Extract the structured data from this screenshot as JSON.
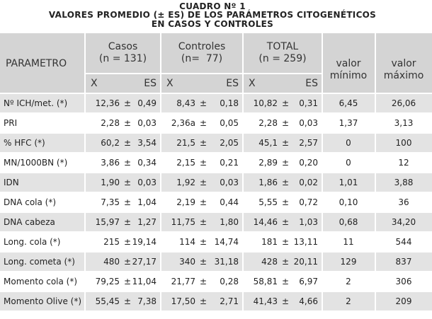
{
  "header": {
    "label": "CUADRO Nº 1",
    "title": "VALORES PROMEDIO (± ES) DE LOS PARÁMETROS CITOGENÉTICOS",
    "subtitle": "EN CASOS Y CONTROLES"
  },
  "table": {
    "columns": {
      "parameter": "PARAMETRO",
      "groups": [
        {
          "name": "Casos",
          "n": "(n = 131)"
        },
        {
          "name": "Controles",
          "n": "(n=  77)"
        },
        {
          "name": "TOTAL",
          "n": "(n = 259)"
        }
      ],
      "x": "X",
      "es": "ES",
      "pm": "±",
      "min": "valor mínimo",
      "max": "valor máximo"
    },
    "rows": [
      [
        "Nº ICH/met. (*)",
        "12,36",
        "0,49",
        "8,43",
        "0,18",
        "10,82",
        "0,31",
        "6,45",
        "26,06"
      ],
      [
        "PRI",
        "2,28",
        "0,03",
        "2,36a",
        "0,05",
        "2,28",
        "0,03",
        "1,37",
        "3,13"
      ],
      [
        "% HFC (*)",
        "60,2",
        "3,54",
        "21,5",
        "2,05",
        "45,1",
        "2,57",
        "0",
        "100"
      ],
      [
        "MN/1000BN (*)",
        "3,86",
        "0,34",
        "2,15",
        "0,21",
        "2,89",
        "0,20",
        "0",
        "12"
      ],
      [
        "IDN",
        "1,90",
        "0,03",
        "1,92",
        "0,03",
        "1,86",
        "0,02",
        "1,01",
        "3,88"
      ],
      [
        "DNA cola (*)",
        "7,35",
        "1,04",
        "2,19",
        "0,44",
        "5,55",
        "0,72",
        "0,10",
        "36"
      ],
      [
        "DNA cabeza",
        "15,97",
        "1,27",
        "11,75",
        "1,80",
        "14,46",
        "1,03",
        "0,68",
        "34,20"
      ],
      [
        "Long. cola (*)",
        "215",
        "19,14",
        "114",
        "14,74",
        "181",
        "13,11",
        "11",
        "544"
      ],
      [
        "Long. cometa (*)",
        "480",
        "27,17",
        "340",
        "31,18",
        "428",
        "20,11",
        "129",
        "837"
      ],
      [
        "Momento cola (*)",
        "79,25",
        "11,04",
        "21,77",
        "0,28",
        "58,81",
        "6,97",
        "2",
        "306"
      ],
      [
        "Momento Olive (*)",
        "55,45",
        "7,38",
        "17,50",
        "2,71",
        "41,43",
        "4,66",
        "2",
        "209"
      ]
    ]
  }
}
